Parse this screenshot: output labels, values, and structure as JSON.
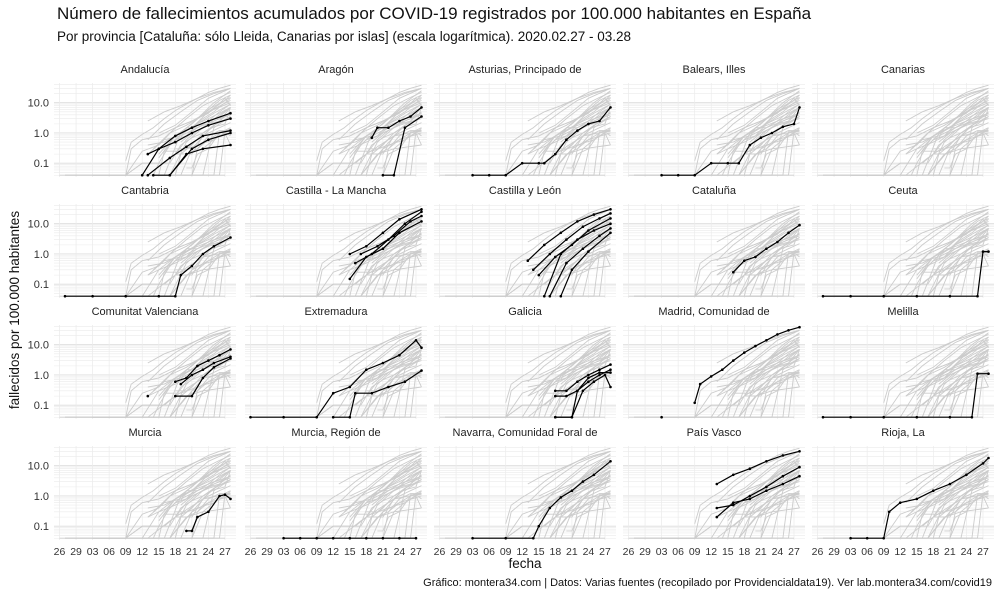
{
  "title": "Número de fallecimientos acumulados por COVID-19 registrados por 100.000 habitantes en España",
  "subtitle": "Por provincia [Cataluña: sólo Lleida, Canarias por islas] (escala logarítmica). 2020.02.27 - 03.28",
  "caption": "Gráfico: montera34.com | Datos: Varias fuentes (recopilado por Providencialdata19). Ver lab.montera34.com/covid19",
  "colors": {
    "highlight": "#000000",
    "background_lines": "#cccccc",
    "grid": "#ebebeb"
  },
  "chart_data": {
    "type": "line",
    "facet": "small-multiples",
    "xlabel": "fecha",
    "ylabel": "fallecidos por 100.000 habitantes",
    "y_scale": "log",
    "y_ticks": [
      0.1,
      1.0,
      10.0
    ],
    "y_tick_labels": [
      "0.1",
      "1.0",
      "10.0"
    ],
    "x_ticks": [
      "2020-02-26",
      "2020-02-29",
      "2020-03-03",
      "2020-03-06",
      "2020-03-09",
      "2020-03-12",
      "2020-03-15",
      "2020-03-18",
      "2020-03-21",
      "2020-03-24",
      "2020-03-27"
    ],
    "x_tick_labels": [
      "26",
      "29",
      "03",
      "06",
      "09",
      "12",
      "15",
      "18",
      "21",
      "24",
      "27"
    ],
    "grid": true,
    "background": "all provinces drawn in light grey in every panel",
    "panels": [
      {
        "name": "Andalucía",
        "series": [
          {
            "x": [
              "2020-03-13",
              "2020-03-15",
              "2020-03-18",
              "2020-03-21",
              "2020-03-24",
              "2020-03-28"
            ],
            "y": [
              0.2,
              0.3,
              0.8,
              1.5,
              2.5,
              4.5
            ]
          },
          {
            "x": [
              "2020-03-12",
              "2020-03-15",
              "2020-03-18",
              "2020-03-21",
              "2020-03-24",
              "2020-03-28"
            ],
            "y": [
              0.04,
              0.3,
              0.5,
              1.0,
              1.8,
              3.0
            ]
          },
          {
            "x": [
              "2020-03-13",
              "2020-03-17",
              "2020-03-20",
              "2020-03-23",
              "2020-03-28"
            ],
            "y": [
              0.04,
              0.15,
              0.35,
              0.8,
              1.2
            ]
          },
          {
            "x": [
              "2020-03-14",
              "2020-03-17",
              "2020-03-21",
              "2020-03-24",
              "2020-03-28"
            ],
            "y": [
              0.04,
              0.04,
              0.3,
              0.6,
              1.0
            ]
          },
          {
            "x": [
              "2020-03-17",
              "2020-03-20",
              "2020-03-23",
              "2020-03-28"
            ],
            "y": [
              0.04,
              0.2,
              0.3,
              0.4
            ]
          }
        ]
      },
      {
        "name": "Aragón",
        "series": [
          {
            "x": [
              "2020-03-19",
              "2020-03-20",
              "2020-03-22",
              "2020-03-24",
              "2020-03-26",
              "2020-03-28"
            ],
            "y": [
              0.7,
              1.5,
              1.5,
              2.5,
              3.5,
              7.0
            ]
          },
          {
            "x": [
              "2020-03-21",
              "2020-03-23",
              "2020-03-25",
              "2020-03-28"
            ],
            "y": [
              0.04,
              0.04,
              1.5,
              3.5
            ]
          }
        ]
      },
      {
        "name": "Asturias, Principado de",
        "series": [
          {
            "x": [
              "2020-03-03",
              "2020-03-06",
              "2020-03-09",
              "2020-03-12",
              "2020-03-15",
              "2020-03-16",
              "2020-03-18",
              "2020-03-20",
              "2020-03-22",
              "2020-03-24",
              "2020-03-26",
              "2020-03-28"
            ],
            "y": [
              0.04,
              0.04,
              0.04,
              0.1,
              0.1,
              0.1,
              0.2,
              0.6,
              1.2,
              2.0,
              2.5,
              7.0
            ]
          }
        ]
      },
      {
        "name": "Balears, Illes",
        "series": [
          {
            "x": [
              "2020-03-03",
              "2020-03-06",
              "2020-03-09",
              "2020-03-12",
              "2020-03-15",
              "2020-03-17",
              "2020-03-19",
              "2020-03-21",
              "2020-03-23",
              "2020-03-25",
              "2020-03-27",
              "2020-03-28"
            ],
            "y": [
              0.04,
              0.04,
              0.04,
              0.1,
              0.1,
              0.1,
              0.4,
              0.7,
              1.0,
              1.6,
              2.0,
              7.0
            ]
          }
        ]
      },
      {
        "name": "Canarias",
        "series": []
      },
      {
        "name": "Cantabria",
        "series": [
          {
            "x": [
              "2020-02-27",
              "2020-03-03",
              "2020-03-09",
              "2020-03-15",
              "2020-03-18",
              "2020-03-19",
              "2020-03-21",
              "2020-03-23",
              "2020-03-25",
              "2020-03-28"
            ],
            "y": [
              0.04,
              0.04,
              0.04,
              0.04,
              0.04,
              0.2,
              0.4,
              1.0,
              1.8,
              3.5
            ]
          }
        ]
      },
      {
        "name": "Castilla - La Mancha",
        "series": [
          {
            "x": [
              "2020-03-15",
              "2020-03-18",
              "2020-03-21",
              "2020-03-24",
              "2020-03-28"
            ],
            "y": [
              1.0,
              1.8,
              5.0,
              14.0,
              30.0
            ]
          },
          {
            "x": [
              "2020-03-16",
              "2020-03-19",
              "2020-03-22",
              "2020-03-25",
              "2020-03-28"
            ],
            "y": [
              0.5,
              1.0,
              3.0,
              10.0,
              25.0
            ]
          },
          {
            "x": [
              "2020-03-17",
              "2020-03-20",
              "2020-03-23",
              "2020-03-26",
              "2020-03-28"
            ],
            "y": [
              1.0,
              1.8,
              4.0,
              12.0,
              18.0
            ]
          },
          {
            "x": [
              "2020-03-15",
              "2020-03-18",
              "2020-03-21",
              "2020-03-24",
              "2020-03-28"
            ],
            "y": [
              0.15,
              0.8,
              1.5,
              5.0,
              12.0
            ]
          }
        ]
      },
      {
        "name": "Castilla y León",
        "series": [
          {
            "x": [
              "2020-03-13",
              "2020-03-16",
              "2020-03-19",
              "2020-03-22",
              "2020-03-25",
              "2020-03-28"
            ],
            "y": [
              0.6,
              2.0,
              5.0,
              12.0,
              20.0,
              30.0
            ]
          },
          {
            "x": [
              "2020-03-14",
              "2020-03-17",
              "2020-03-20",
              "2020-03-23",
              "2020-03-26",
              "2020-03-28"
            ],
            "y": [
              0.3,
              1.0,
              3.0,
              8.0,
              15.0,
              22.0
            ]
          },
          {
            "x": [
              "2020-03-15",
              "2020-03-18",
              "2020-03-21",
              "2020-03-24",
              "2020-03-28"
            ],
            "y": [
              0.2,
              0.8,
              2.0,
              6.0,
              15.0
            ]
          },
          {
            "x": [
              "2020-03-16",
              "2020-03-19",
              "2020-03-22",
              "2020-03-25",
              "2020-03-28"
            ],
            "y": [
              0.04,
              1.0,
              3.0,
              6.0,
              10.0
            ]
          },
          {
            "x": [
              "2020-03-17",
              "2020-03-20",
              "2020-03-23",
              "2020-03-26",
              "2020-03-28"
            ],
            "y": [
              0.04,
              0.5,
              1.5,
              4.0,
              7.0
            ]
          },
          {
            "x": [
              "2020-03-19",
              "2020-03-21",
              "2020-03-24",
              "2020-03-28"
            ],
            "y": [
              0.04,
              0.3,
              1.2,
              5.0
            ]
          }
        ]
      },
      {
        "name": "Cataluña",
        "series": [
          {
            "x": [
              "2020-03-16",
              "2020-03-18",
              "2020-03-20",
              "2020-03-22",
              "2020-03-24",
              "2020-03-26",
              "2020-03-28"
            ],
            "y": [
              0.25,
              0.6,
              0.8,
              1.5,
              2.5,
              5.0,
              9.0
            ]
          }
        ]
      },
      {
        "name": "Ceuta",
        "series": [
          {
            "x": [
              "2020-02-27",
              "2020-03-03",
              "2020-03-09",
              "2020-03-15",
              "2020-03-21",
              "2020-03-26",
              "2020-03-27",
              "2020-03-28"
            ],
            "y": [
              0.04,
              0.04,
              0.04,
              0.04,
              0.04,
              0.04,
              1.2,
              1.2
            ]
          }
        ]
      },
      {
        "name": "Comunitat Valenciana",
        "series": [
          {
            "x": [
              "2020-03-13"
            ],
            "y": [
              0.2
            ]
          },
          {
            "x": [
              "2020-03-18",
              "2020-03-20",
              "2020-03-22",
              "2020-03-24",
              "2020-03-26",
              "2020-03-28"
            ],
            "y": [
              0.6,
              0.8,
              2.0,
              3.0,
              4.5,
              7.0
            ]
          },
          {
            "x": [
              "2020-03-19",
              "2020-03-21",
              "2020-03-23",
              "2020-03-25",
              "2020-03-28"
            ],
            "y": [
              0.5,
              1.0,
              1.5,
              2.5,
              4.0
            ]
          },
          {
            "x": [
              "2020-03-18",
              "2020-03-21",
              "2020-03-23",
              "2020-03-25",
              "2020-03-28"
            ],
            "y": [
              0.2,
              0.2,
              0.8,
              1.8,
              3.5
            ]
          }
        ]
      },
      {
        "name": "Extremadura",
        "series": [
          {
            "x": [
              "2020-02-26",
              "2020-03-03",
              "2020-03-09",
              "2020-03-12",
              "2020-03-15",
              "2020-03-18",
              "2020-03-21",
              "2020-03-24",
              "2020-03-27",
              "2020-03-28"
            ],
            "y": [
              0.04,
              0.04,
              0.04,
              0.25,
              0.4,
              1.5,
              2.5,
              4.5,
              14.0,
              8.0
            ]
          },
          {
            "x": [
              "2020-03-12",
              "2020-03-15",
              "2020-03-16",
              "2020-03-19",
              "2020-03-22",
              "2020-03-25",
              "2020-03-28"
            ],
            "y": [
              0.04,
              0.04,
              0.25,
              0.25,
              0.4,
              0.6,
              1.4
            ]
          }
        ]
      },
      {
        "name": "Galicia",
        "series": [
          {
            "x": [
              "2020-03-18",
              "2020-03-20",
              "2020-03-22",
              "2020-03-24",
              "2020-03-26",
              "2020-03-28"
            ],
            "y": [
              0.3,
              0.3,
              0.6,
              1.0,
              1.5,
              2.2
            ]
          },
          {
            "x": [
              "2020-03-18",
              "2020-03-20",
              "2020-03-22",
              "2020-03-24",
              "2020-03-26",
              "2020-03-28"
            ],
            "y": [
              0.2,
              0.2,
              0.3,
              0.6,
              1.0,
              1.5
            ]
          },
          {
            "x": [
              "2020-03-18",
              "2020-03-21",
              "2020-03-22",
              "2020-03-24",
              "2020-03-26",
              "2020-03-28"
            ],
            "y": [
              0.04,
              0.04,
              0.3,
              0.8,
              1.2,
              1.2
            ]
          },
          {
            "x": [
              "2020-03-18",
              "2020-03-21",
              "2020-03-23",
              "2020-03-25",
              "2020-03-27",
              "2020-03-28"
            ],
            "y": [
              0.04,
              0.04,
              0.3,
              0.6,
              1.0,
              0.4
            ]
          }
        ]
      },
      {
        "name": "Madrid, Comunidad de",
        "series": [
          {
            "x": [
              "2020-03-03"
            ],
            "y": [
              0.04
            ]
          },
          {
            "x": [
              "2020-03-09",
              "2020-03-10",
              "2020-03-12",
              "2020-03-14",
              "2020-03-16",
              "2020-03-18",
              "2020-03-20",
              "2020-03-22",
              "2020-03-24",
              "2020-03-26",
              "2020-03-28"
            ],
            "y": [
              0.12,
              0.5,
              0.9,
              1.5,
              3.0,
              5.5,
              9.0,
              14.0,
              22.0,
              30.0,
              38.0
            ]
          }
        ]
      },
      {
        "name": "Melilla",
        "series": [
          {
            "x": [
              "2020-02-27",
              "2020-03-03",
              "2020-03-09",
              "2020-03-15",
              "2020-03-21",
              "2020-03-25",
              "2020-03-26",
              "2020-03-28"
            ],
            "y": [
              0.04,
              0.04,
              0.04,
              0.04,
              0.04,
              0.04,
              1.1,
              1.1
            ]
          }
        ]
      },
      {
        "name": "Murcia",
        "series": [
          {
            "x": [
              "2020-03-20",
              "2020-03-21",
              "2020-03-22",
              "2020-03-24",
              "2020-03-26",
              "2020-03-27",
              "2020-03-28"
            ],
            "y": [
              0.07,
              0.07,
              0.2,
              0.3,
              1.0,
              1.1,
              0.8
            ]
          }
        ]
      },
      {
        "name": "Murcia, Región de",
        "series": [
          {
            "x": [
              "2020-03-03",
              "2020-03-06",
              "2020-03-09",
              "2020-03-12",
              "2020-03-15",
              "2020-03-18",
              "2020-03-21",
              "2020-03-24",
              "2020-03-27"
            ],
            "y": [
              0.04,
              0.04,
              0.04,
              0.04,
              0.04,
              0.04,
              0.04,
              0.04,
              0.04
            ]
          }
        ]
      },
      {
        "name": "Navarra, Comunidad Foral de",
        "series": [
          {
            "x": [
              "2020-03-03",
              "2020-03-09",
              "2020-03-14",
              "2020-03-15",
              "2020-03-17",
              "2020-03-19",
              "2020-03-21",
              "2020-03-23",
              "2020-03-25",
              "2020-03-28"
            ],
            "y": [
              0.04,
              0.04,
              0.04,
              0.1,
              0.4,
              0.9,
              1.5,
              3.0,
              5.0,
              14.0
            ]
          }
        ]
      },
      {
        "name": "País Vasco",
        "series": [
          {
            "x": [
              "2020-03-13",
              "2020-03-16",
              "2020-03-19",
              "2020-03-22",
              "2020-03-25",
              "2020-03-28"
            ],
            "y": [
              2.5,
              5.0,
              8.0,
              14.0,
              22.0,
              30.0
            ]
          },
          {
            "x": [
              "2020-03-13",
              "2020-03-16",
              "2020-03-19",
              "2020-03-22",
              "2020-03-25",
              "2020-03-28"
            ],
            "y": [
              0.4,
              0.5,
              1.0,
              2.0,
              4.5,
              9.0
            ]
          },
          {
            "x": [
              "2020-03-13",
              "2020-03-16",
              "2020-03-19",
              "2020-03-22",
              "2020-03-25",
              "2020-03-28"
            ],
            "y": [
              0.2,
              0.6,
              0.8,
              1.5,
              2.5,
              4.5
            ]
          }
        ]
      },
      {
        "name": "Rioja, La",
        "series": [
          {
            "x": [
              "2020-03-03",
              "2020-03-06",
              "2020-03-09",
              "2020-03-10",
              "2020-03-12",
              "2020-03-15",
              "2020-03-18",
              "2020-03-21",
              "2020-03-24",
              "2020-03-27",
              "2020-03-28"
            ],
            "y": [
              0.04,
              0.04,
              0.04,
              0.3,
              0.6,
              0.8,
              1.5,
              2.5,
              5.0,
              12.0,
              18.0
            ]
          }
        ]
      }
    ]
  }
}
